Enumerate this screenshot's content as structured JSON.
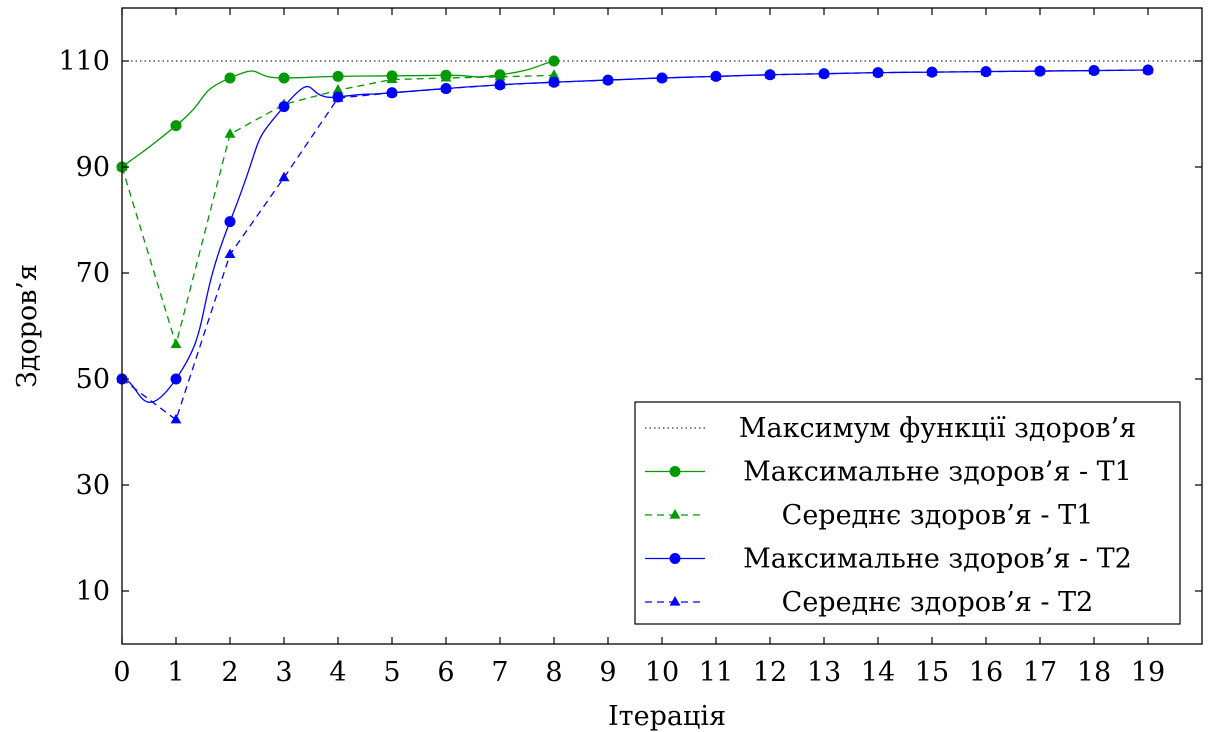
{
  "chart_data": {
    "type": "line",
    "xlabel": "Ітерація",
    "ylabel": "Здоров’я",
    "xlim": [
      0,
      20
    ],
    "ylim": [
      0,
      120
    ],
    "xticks": [
      0,
      1,
      2,
      3,
      4,
      5,
      6,
      7,
      8,
      9,
      10,
      11,
      12,
      13,
      14,
      15,
      16,
      17,
      18,
      19
    ],
    "yticks": [
      10,
      30,
      50,
      70,
      90,
      110
    ],
    "grid": false,
    "legend_position": "bottom-right",
    "reference_line": {
      "name": "Максимум функції здоров’я",
      "y": 110,
      "color": "#000000",
      "style": "dotted"
    },
    "series": [
      {
        "name": "Максимальне здоров’я - T1",
        "color": "#009900",
        "style": "solid",
        "marker": "circle",
        "smooth": true,
        "x": [
          0,
          1,
          2,
          3,
          4,
          5,
          6,
          7,
          8
        ],
        "y": [
          90,
          97.8,
          106.8,
          106.8,
          107.1,
          107.2,
          107.3,
          107.4,
          110
        ]
      },
      {
        "name": "Середнє здоров’я - T1",
        "color": "#009900",
        "style": "dashed",
        "marker": "triangle",
        "smooth": false,
        "x": [
          0,
          1,
          2,
          3,
          4,
          5,
          6,
          7,
          8
        ],
        "y": [
          90,
          56.5,
          96.2,
          101.8,
          104.5,
          106.5,
          106.8,
          107.0,
          107.3
        ]
      },
      {
        "name": "Максимальне здоров’я - T2",
        "color": "#0000ff",
        "style": "solid",
        "marker": "circle",
        "smooth": true,
        "x": [
          0,
          1,
          2,
          3,
          4,
          5,
          6,
          7,
          8,
          9,
          10,
          11,
          12,
          13,
          14,
          15,
          16,
          17,
          18,
          19
        ],
        "y": [
          50,
          50,
          79.7,
          101.4,
          103.2,
          104.0,
          104.8,
          105.5,
          106.0,
          106.4,
          106.8,
          107.1,
          107.4,
          107.6,
          107.8,
          107.9,
          108.0,
          108.1,
          108.2,
          108.3
        ]
      },
      {
        "name": "Середнє здоров’я - T2",
        "color": "#0000ff",
        "style": "dashed",
        "marker": "triangle",
        "smooth": false,
        "x": [
          0,
          1,
          2,
          3,
          4,
          5,
          6,
          7,
          8,
          9,
          10,
          11,
          12,
          13,
          14,
          15,
          16,
          17,
          18,
          19
        ],
        "y": [
          50,
          42.3,
          73.5,
          88.0,
          103.0,
          104.0,
          104.8,
          105.5,
          106.0,
          106.4,
          106.8,
          107.1,
          107.4,
          107.6,
          107.8,
          107.9,
          108.0,
          108.1,
          108.2,
          108.3
        ]
      }
    ]
  }
}
